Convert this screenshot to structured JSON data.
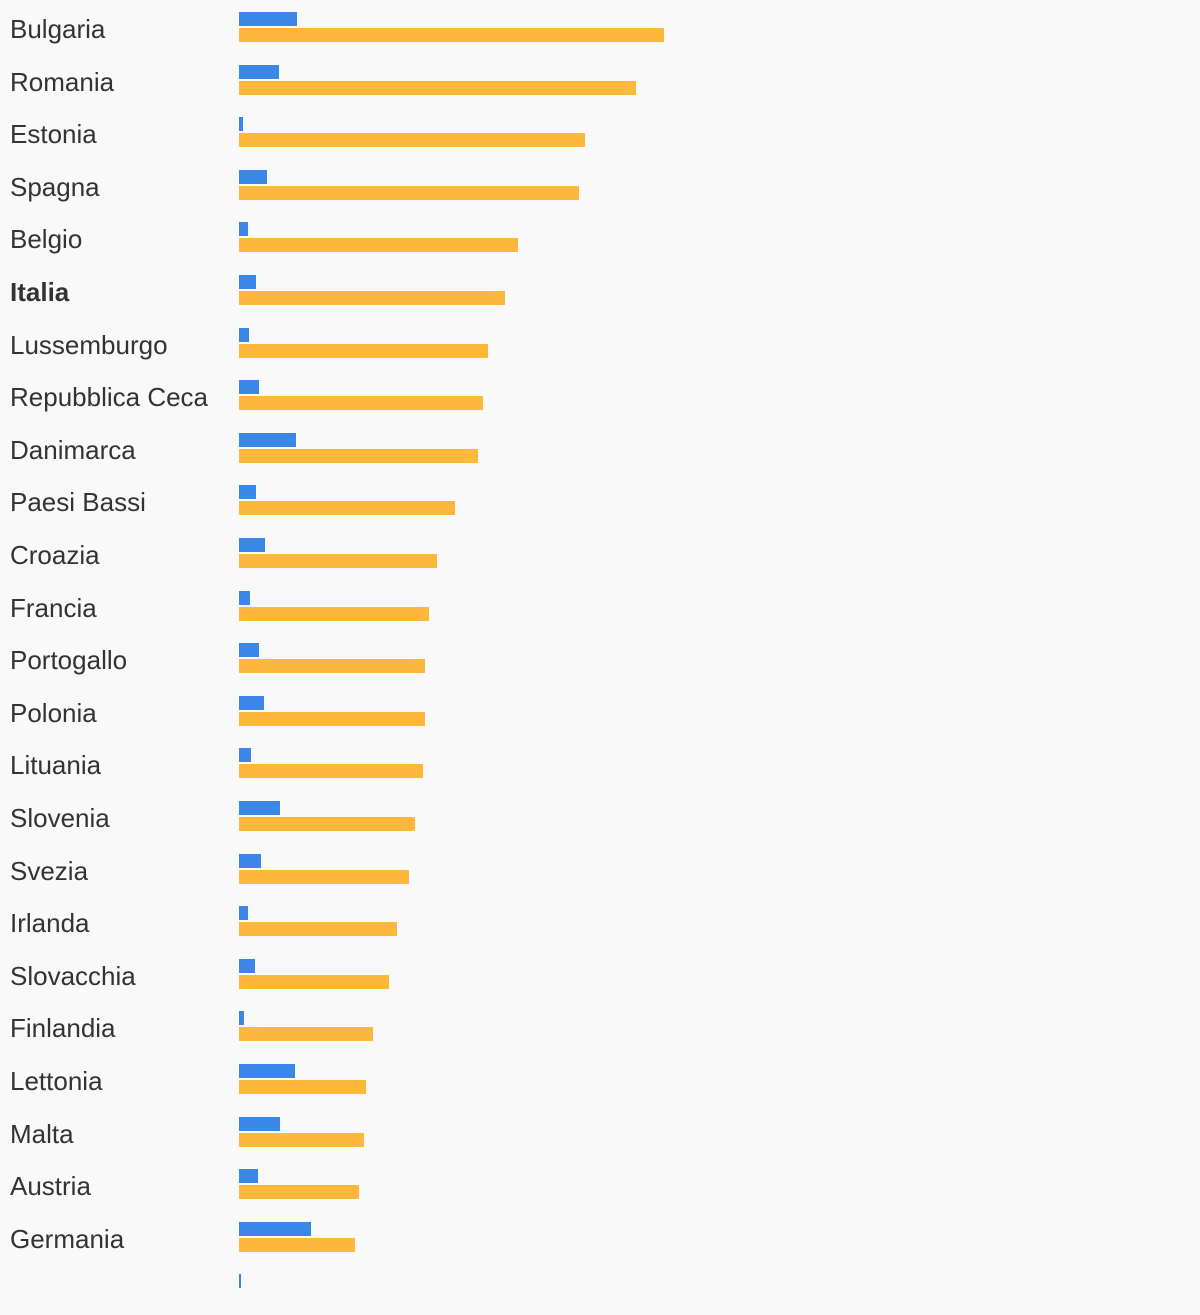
{
  "chart_data": {
    "type": "bar",
    "orientation": "horizontal",
    "title": "",
    "xlabel": "",
    "ylabel": "",
    "grid": false,
    "legend": "none",
    "highlight_category": "Italia",
    "categories": [
      "Bulgaria",
      "Romania",
      "Estonia",
      "Spagna",
      "Belgio",
      "Italia",
      "Lussemburgo",
      "Repubblica Ceca",
      "Danimarca",
      "Paesi Bassi",
      "Croazia",
      "Francia",
      "Portogallo",
      "Polonia",
      "Lituania",
      "Slovenia",
      "Svezia",
      "Irlanda",
      "Slovacchia",
      "Finlandia",
      "Lettonia",
      "Malta",
      "Austria",
      "Germania",
      ""
    ],
    "series": [
      {
        "color": "#3a87e8",
        "values": [
          58,
          40,
          4,
          28,
          9,
          17,
          10,
          20,
          57,
          17,
          26,
          11,
          20,
          25,
          12,
          41,
          22,
          9,
          16,
          5,
          56,
          41,
          19,
          72,
          2
        ]
      },
      {
        "color": "#fdb83b",
        "values": [
          425,
          397,
          346,
          340,
          279,
          266,
          249,
          244,
          239,
          216,
          198,
          190,
          186,
          186,
          184,
          176,
          170,
          158,
          150,
          134,
          127,
          125,
          120,
          116,
          0
        ]
      }
    ],
    "xlim": [
      0,
      961
    ]
  }
}
